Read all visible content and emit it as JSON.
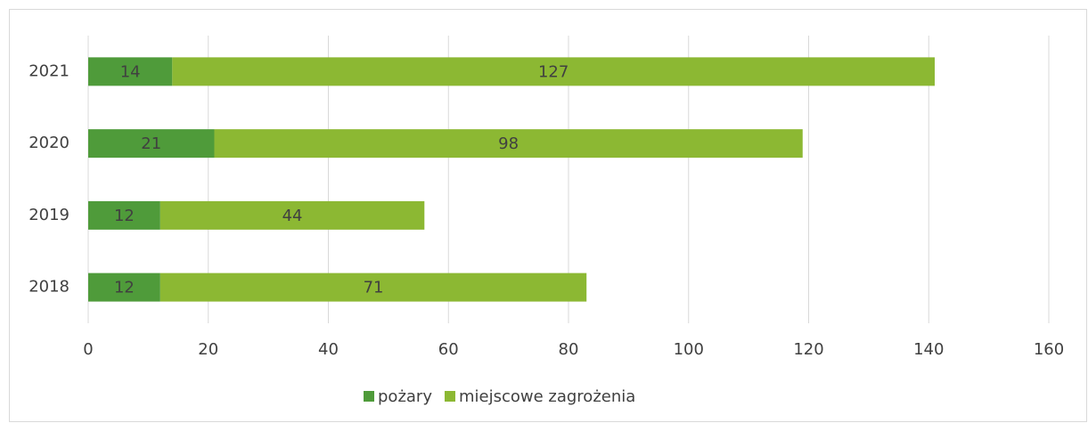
{
  "chart_data": {
    "type": "bar",
    "orientation": "horizontal",
    "stacked": true,
    "categories": [
      "2018",
      "2019",
      "2020",
      "2021"
    ],
    "series": [
      {
        "name": "pożary",
        "color": "#4f9b3a",
        "values": [
          12,
          12,
          21,
          14
        ]
      },
      {
        "name": "miejscowe zagrożenia",
        "color": "#8cb833",
        "values": [
          71,
          44,
          98,
          127
        ]
      }
    ],
    "xlim": [
      0,
      160
    ],
    "xticks": [
      0,
      20,
      40,
      60,
      80,
      100,
      120,
      140,
      160
    ],
    "grid": true,
    "legend": "bottom",
    "data_labels": true
  }
}
